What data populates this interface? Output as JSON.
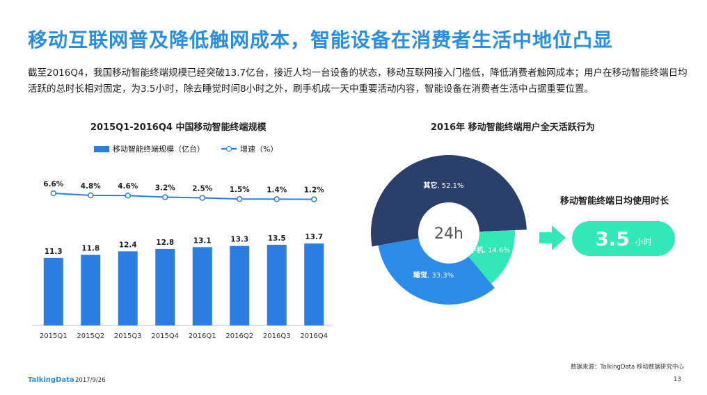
{
  "title": "移动互联网普及降低触网成本，智能设备在消费者生活中地位凸显",
  "description": "截至2016Q4，我国移动智能终端规模已经突破13.7亿台，接近人均一台设备的状态，移动互联网接入门槛低，降低消费者触网成本；用户在移动智能终端日均活跃的总时长相对固定，为3.5小时，除去睡觉时间8小时之外，刷手机成一天中重要活动内容，智能设备在消费者生活中占据重要位置。",
  "chart_data": [
    {
      "type": "bar",
      "title": "2015Q1-2016Q4 中国移动智能终端规模",
      "categories": [
        "2015Q1",
        "2015Q2",
        "2015Q3",
        "2015Q4",
        "2016Q1",
        "2016Q2",
        "2016Q3",
        "2016Q4"
      ],
      "series": [
        {
          "name": "移动智能终端规模（亿台）",
          "type": "bar",
          "values": [
            11.3,
            11.8,
            12.4,
            12.8,
            13.1,
            13.3,
            13.5,
            13.7
          ],
          "labels": [
            "11.3",
            "11.8",
            "12.4",
            "12.8",
            "13.1",
            "13.3",
            "13.5",
            "13.7"
          ]
        },
        {
          "name": "增速（%）",
          "type": "line",
          "values": [
            6.6,
            4.8,
            4.6,
            3.2,
            2.5,
            1.5,
            1.4,
            1.2
          ],
          "labels": [
            "6.6%",
            "4.8%",
            "4.6%",
            "3.2%",
            "2.5%",
            "1.5%",
            "1.4%",
            "1.2%"
          ]
        }
      ],
      "legend_position": "top",
      "grid": false
    },
    {
      "type": "pie",
      "title": "2016年 移动智能终端用户全天活跃行为",
      "center_label": "24h",
      "slices": [
        {
          "name": "其它",
          "value": 52.1,
          "label": "52.1%",
          "color": "#2b3f6b"
        },
        {
          "name": "刷手机",
          "value": 14.6,
          "label": "14.6%",
          "color": "#33e8b8"
        },
        {
          "name": "睡觉",
          "value": 33.3,
          "label": "33.3%",
          "color": "#2b8de8"
        }
      ]
    }
  ],
  "duration": {
    "label": "移动智能终端日均使用时长",
    "value": "3.5",
    "unit": "小时"
  },
  "colors": {
    "accent": "#2a8ee0",
    "bar": "#2b7de0",
    "teal": "#33e8b8",
    "navy": "#2b3f6b"
  },
  "footer": {
    "source": "数据来源：TalkingData 移动数据研究中心",
    "brand": "TalkingData",
    "date": "2017/9/26",
    "page": "13"
  }
}
